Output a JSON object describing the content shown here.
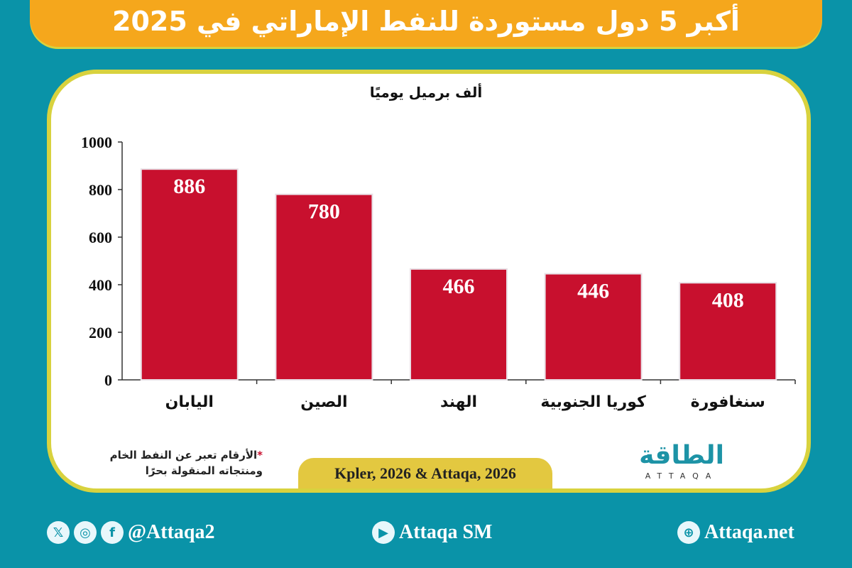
{
  "title": "أكبر 5 دول مستوردة للنفط الإماراتي في 2025",
  "chart_data": {
    "type": "bar",
    "title": "أكبر 5 دول مستوردة للنفط الإماراتي في 2025",
    "ylabel": "ألف برميل يوميًا",
    "xlabel": "",
    "categories": [
      "اليابان",
      "الصين",
      "الهند",
      "كوريا الجنوبية",
      "سنغافورة"
    ],
    "values": [
      886,
      780,
      466,
      446,
      408
    ],
    "ylim": [
      0,
      1000
    ],
    "yticks": [
      0,
      200,
      400,
      600,
      800,
      1000
    ],
    "grid": false,
    "bar_color": "#c8102e",
    "data_labels": true
  },
  "note": {
    "star": "*",
    "line1": "الأرقام تعبر عن النفط الخام",
    "line2": "ومنتجاته المنقولة بحرًا"
  },
  "source": "Kpler, 2026 & Attaqa, 2026",
  "logo": {
    "arabic": "الطاقة",
    "english": "ATTAQA"
  },
  "footer": {
    "social_handle": "@Attaqa2",
    "youtube": "Attaqa SM",
    "website": "Attaqa.net",
    "icons": [
      "x-icon",
      "instagram-icon",
      "facebook-icon",
      "youtube-icon",
      "globe-icon"
    ]
  },
  "colors": {
    "background": "#0a93a8",
    "title_bar": "#f5a71c",
    "border": "#d8d23e",
    "bars": "#c8102e"
  }
}
